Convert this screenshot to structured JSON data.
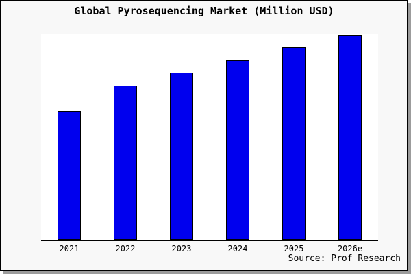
{
  "title": "Global Pyrosequencing Market (Million USD)",
  "source_credit": "Source: Prof Research",
  "colors": {
    "bar_fill": "#0000ee",
    "bar_border": "#000000",
    "frame_background": "#f8f8f8",
    "plot_background": "#ffffff",
    "axis_line": "#000000",
    "frame_border": "#000000",
    "frame_shadow": "#9c9c9c",
    "text": "#000000"
  },
  "chart_data": {
    "type": "bar",
    "title": "Global Pyrosequencing Market (Million USD)",
    "categories": [
      "2021",
      "2022",
      "2023",
      "2024",
      "2025",
      "2026e"
    ],
    "values": [
      62.5,
      74.8,
      81.1,
      87.1,
      93.4,
      99.4
    ],
    "xlabel": "",
    "ylabel": "",
    "ylim": [
      0,
      100
    ],
    "y_axis_visible": false,
    "y_tick_labels": [],
    "grid": false,
    "legend": false,
    "annotation": "Source: Prof Research",
    "value_note": "no y-axis labels shown; values estimated as percent of plot height"
  }
}
